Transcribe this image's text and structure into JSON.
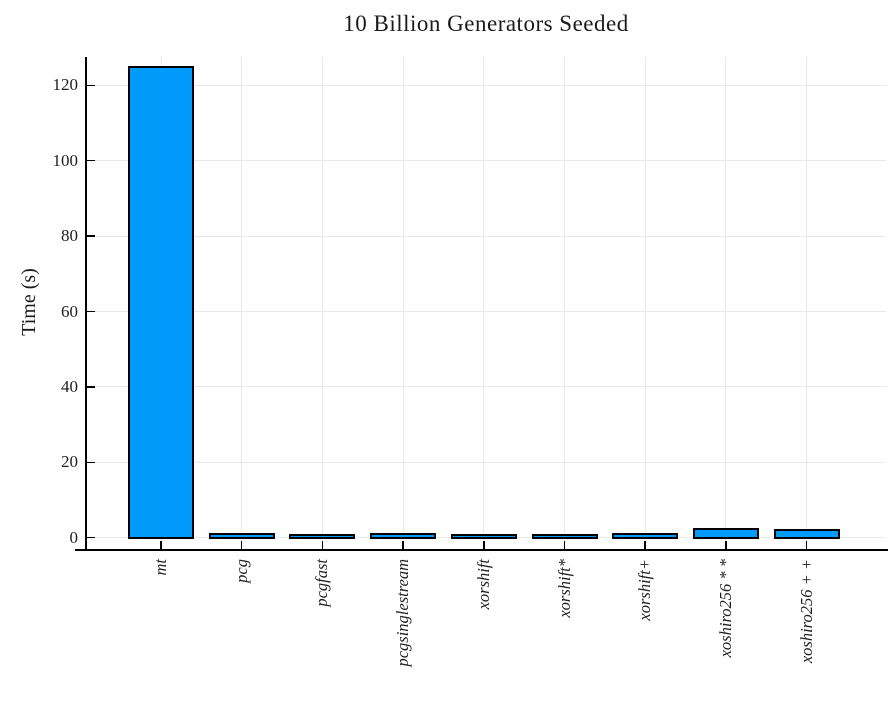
{
  "chart_data": {
    "type": "bar",
    "title": "10 Billion Generators Seeded",
    "xlabel": "",
    "ylabel": "Time (s)",
    "categories": [
      "mt",
      "pcg",
      "pcgfast",
      "pcgsinglestream",
      "xorshift",
      "xorshift*",
      "xorshift+",
      "xoshiro256 * *",
      "xoshiro256 + +"
    ],
    "values": [
      125,
      1.2,
      1.0,
      1.2,
      0.9,
      0.8,
      1.2,
      2.5,
      2.4
    ],
    "yticks": [
      0,
      20,
      40,
      60,
      80,
      100,
      120
    ],
    "ylim": [
      -3.3,
      127.5
    ],
    "grid": true,
    "legend_position": "none",
    "bar_color": "#009AFA",
    "bar_edge_color": "#000000",
    "grid_color": "#e9e9e9",
    "axis_color": "#000000",
    "text_color": "#1f1f1f"
  }
}
